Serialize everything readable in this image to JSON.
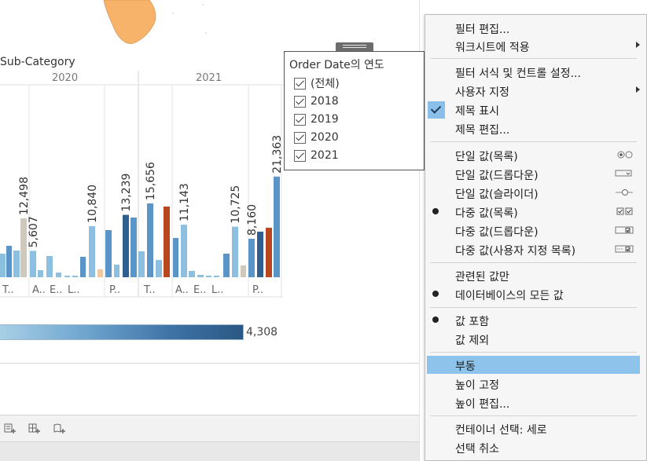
{
  "chart": {
    "title_fragment": "Sub-Category",
    "years": [
      "2020",
      "2021"
    ],
    "legend_max": "4,308"
  },
  "chart_data": {
    "type": "bar",
    "title": "Sub-Category",
    "column_headers": [
      "2020",
      "2021"
    ],
    "categories": [
      "T..",
      "A..",
      "E..",
      "L..",
      "P..",
      "T..",
      "A..",
      "E..",
      "L..",
      "P.."
    ],
    "data_labels": [
      "12,498",
      "5,607",
      "10,840",
      "13,239",
      "15,656",
      "11,143",
      "10,725",
      "8,160",
      "21,363"
    ],
    "color_legend_max": "4,308"
  },
  "filter": {
    "title_en": "Order Date",
    "title_ko": "의 연도",
    "items": [
      "(전체)",
      "2018",
      "2019",
      "2020",
      "2021"
    ]
  },
  "menu": {
    "items": [
      {
        "label": "필터 편집..."
      },
      {
        "label": "워크시트에 적용",
        "submenu": true
      },
      {
        "label": "필터 서식 및 컨트롤 설정..."
      },
      {
        "label": "사용자 지정",
        "submenu": true
      },
      {
        "label": "제목 표시",
        "checked": true
      },
      {
        "label": "제목 편집..."
      },
      {
        "label": "단일 값(목록)",
        "icon": "radio-list-icon"
      },
      {
        "label": "단일 값(드롭다운)",
        "icon": "dropdown-single-icon"
      },
      {
        "label": "단일 값(슬라이더)",
        "icon": "slider-icon"
      },
      {
        "label": "다중 값(목록)",
        "selected": true,
        "icon": "checkbox-list-icon"
      },
      {
        "label": "다중 값(드롭다운)",
        "icon": "dropdown-multi-icon"
      },
      {
        "label": "다중 값(사용자 지정 목록)",
        "icon": "custom-list-icon"
      },
      {
        "label": "관련된 값만"
      },
      {
        "label": "데이터베이스의 모든 값",
        "selected": true
      },
      {
        "label": "값 포함",
        "selected": true
      },
      {
        "label": "값 제외"
      },
      {
        "label": "부동",
        "highlighted": true
      },
      {
        "label": "높이 고정"
      },
      {
        "label": "높이 편집..."
      },
      {
        "label": "컨테이너 선택: 세로"
      },
      {
        "label": "선택 취소"
      }
    ]
  },
  "colors": {
    "light_blue": "#8dbfe0",
    "mid_blue": "#5b95c7",
    "dark_blue": "#2e5f8f",
    "gray_bar": "#cfc9bd",
    "orange_bar": "#b8461f",
    "peach_bar": "#f0c8a0",
    "map_orange": "#f7b36a",
    "menu_highlight": "#8ec4ec"
  }
}
